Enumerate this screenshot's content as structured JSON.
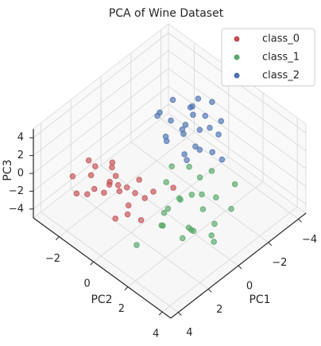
{
  "chart_data": {
    "type": "scatter3d",
    "title": "PCA of Wine Dataset",
    "xlabel": "PC1",
    "ylabel": "PC2",
    "zlabel": "PC3",
    "xlim": [
      -4.5,
      4.5
    ],
    "ylim": [
      -3.5,
      4.5
    ],
    "zlim": [
      -5,
      5
    ],
    "xticks": [
      {
        "value": -4,
        "label": "−4"
      },
      {
        "value": -2,
        "label": "−2"
      },
      0,
      2,
      4
    ],
    "yticks": [
      {
        "value": -2,
        "label": "−2"
      },
      0,
      2,
      4
    ],
    "zticks": [
      {
        "value": -4,
        "label": "−4"
      },
      {
        "value": -2,
        "label": "−2"
      },
      0,
      2,
      4
    ],
    "grid": true,
    "legend": "upper right",
    "series": [
      {
        "name": "class_0",
        "color": "#c44e52",
        "x": [
          3.3,
          2.2,
          2.5,
          3.8,
          1.9,
          2.8,
          3.1,
          2.0,
          2.6,
          4.0,
          1.5,
          2.9,
          3.5,
          2.3,
          1.8,
          3.0,
          2.7,
          2.1,
          3.6,
          1.2,
          2.4,
          3.2,
          1.7,
          2.9,
          0.9
        ],
        "y": [
          -1.0,
          -0.5,
          0.2,
          -1.6,
          -1.2,
          0.5,
          -0.3,
          0.8,
          -1.8,
          -0.8,
          -0.2,
          -1.3,
          0.4,
          -2.2,
          0.3,
          -0.7,
          1.2,
          -1.0,
          -2.0,
          0.6,
          -0.4,
          0.9,
          -1.5,
          -0.1,
          1.5
        ],
        "z": [
          0.2,
          -0.8,
          1.0,
          -0.5,
          0.5,
          -1.2,
          1.4,
          0.0,
          -0.3,
          0.8,
          -1.5,
          1.8,
          -0.9,
          0.4,
          1.1,
          -0.2,
          -1.0,
          1.6,
          0.6,
          -0.6,
          0.3,
          0.9,
          -1.8,
          2.4,
          0.7
        ]
      },
      {
        "name": "class_1",
        "color": "#55a868",
        "x": [
          0.5,
          -0.2,
          1.2,
          0.8,
          -0.8,
          1.6,
          0.1,
          -1.2,
          0.9,
          2.0,
          -0.5,
          0.3,
          1.4,
          -1.6,
          0.6,
          1.0,
          -0.1,
          2.4,
          0.2,
          -0.9,
          1.8,
          0.7,
          -0.3,
          1.1,
          3.0
        ],
        "y": [
          1.5,
          2.2,
          2.8,
          1.0,
          2.5,
          1.8,
          3.2,
          1.9,
          2.4,
          3.0,
          1.2,
          2.7,
          1.4,
          2.9,
          3.6,
          2.0,
          1.7,
          2.2,
          0.8,
          3.3,
          1.6,
          2.5,
          2.0,
          3.9,
          1.2
        ],
        "z": [
          -1.0,
          -0.5,
          -1.8,
          0.5,
          -1.2,
          -0.3,
          -2.0,
          0.4,
          -2.5,
          -1.4,
          0.8,
          -0.8,
          -1.6,
          -0.2,
          -2.8,
          0.2,
          -1.1,
          -0.6,
          1.2,
          -1.5,
          -2.2,
          -3.0,
          1.0,
          -1.0,
          -3.4
        ]
      },
      {
        "name": "class_2",
        "color": "#4c72b0",
        "x": [
          -1.5,
          -2.0,
          -1.0,
          -2.6,
          -1.8,
          -0.8,
          -2.3,
          -1.2,
          -3.0,
          -1.6,
          -2.1,
          -0.6,
          -2.8,
          -1.4,
          -1.9,
          -1.1,
          -2.5,
          -3.4,
          -1.7,
          -0.9,
          -2.2,
          -1.3,
          -2.7,
          -2.0,
          -3.2
        ],
        "y": [
          0.0,
          0.5,
          -0.6,
          0.3,
          -1.0,
          0.8,
          -0.3,
          1.2,
          -0.8,
          0.6,
          1.0,
          -0.2,
          0.9,
          -1.3,
          0.2,
          0.4,
          -1.5,
          0.0,
          1.5,
          -1.0,
          -0.5,
          0.1,
          -0.2,
          1.8,
          0.7
        ],
        "z": [
          1.5,
          2.0,
          1.0,
          2.5,
          1.2,
          0.6,
          3.0,
          1.8,
          1.5,
          0.8,
          2.8,
          1.6,
          1.0,
          2.2,
          3.4,
          0.3,
          1.9,
          2.6,
          1.3,
          2.9,
          0.9,
          2.4,
          3.6,
          0.5,
          1.7
        ]
      }
    ]
  }
}
